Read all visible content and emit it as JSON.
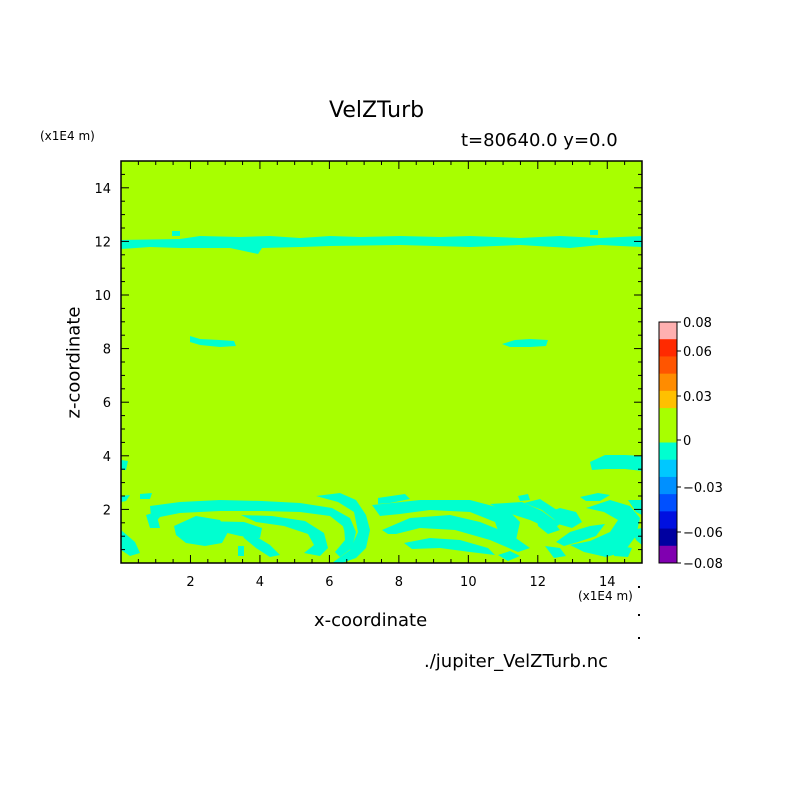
{
  "title": "VelZTurb",
  "subtitle": "t=80640.0 y=0.0",
  "filename": "./jupiter_VelZTurb.nc",
  "chart_data": {
    "type": "heatmap",
    "xlabel": "x-coordinate",
    "ylabel": "z-coordinate",
    "x_unit": "(x1E4 m)",
    "y_unit": "(x1E4 m)",
    "xlim": [
      0,
      15
    ],
    "ylim": [
      0,
      15
    ],
    "x_ticks": [
      2,
      4,
      6,
      8,
      10,
      12,
      14
    ],
    "y_ticks": [
      2,
      4,
      6,
      8,
      10,
      12,
      14
    ],
    "background_value": 0,
    "background_color": "#a8ff00",
    "colorbar": {
      "tick_labels": [
        "0.08",
        "0.06",
        "0.03",
        "0",
        "−0.03",
        "−0.06",
        "−0.08"
      ],
      "levels": [
        {
          "color": "#ffb0b0"
        },
        {
          "color": "#ff2a00"
        },
        {
          "color": "#ff5500"
        },
        {
          "color": "#ff8c00"
        },
        {
          "color": "#ffc000"
        },
        {
          "color": "#a8ff00"
        },
        {
          "color": "#a8ff00"
        },
        {
          "color": "#00ffd0"
        },
        {
          "color": "#00c8ff"
        },
        {
          "color": "#0090ff"
        },
        {
          "color": "#0050ff"
        },
        {
          "color": "#0010e0"
        },
        {
          "color": "#0000a0"
        },
        {
          "color": "#8000b0"
        }
      ]
    },
    "negative_color": "#00ffd0",
    "regions": [
      {
        "name": "band-z12",
        "x": [
          0,
          15
        ],
        "z": [
          11.6,
          12.2
        ]
      },
      {
        "name": "patch-left-z8",
        "x": [
          2.0,
          3.2
        ],
        "z": [
          8.0,
          8.4
        ]
      },
      {
        "name": "patch-right-z8",
        "x": [
          10.4,
          11.6
        ],
        "z": [
          8.0,
          8.4
        ]
      },
      {
        "name": "patch-right-z3.8",
        "x": [
          13.5,
          15.0
        ],
        "z": [
          3.5,
          4.0
        ]
      },
      {
        "name": "lower-swirls",
        "x": [
          0,
          15
        ],
        "z": [
          0,
          2.4
        ]
      }
    ]
  }
}
